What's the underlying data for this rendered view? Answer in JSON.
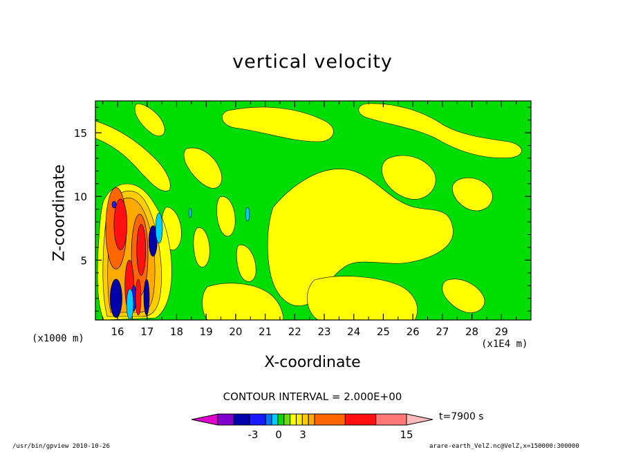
{
  "chart_data": {
    "type": "heatmap",
    "title": "vertical velocity",
    "xlabel": "X-coordinate",
    "ylabel": "Z-coordinate",
    "x_unit_left": "(x1000 m)",
    "x_unit_right": "(x1E4 m)",
    "xlim": [
      15.25,
      30.0
    ],
    "ylim": [
      0.3,
      17.5
    ],
    "x_ticks": [
      "16",
      "17",
      "18",
      "19",
      "20",
      "21",
      "22",
      "23",
      "24",
      "25",
      "26",
      "27",
      "28",
      "29"
    ],
    "y_ticks": [
      "5",
      "10",
      "15"
    ],
    "contour_interval_text": "CONTOUR INTERVAL = 2.000E+00",
    "colorbar_labels": [
      "-3",
      "0",
      "3",
      "15"
    ],
    "time_label": "t=7900 s",
    "colors": {
      "background": "#00dd00",
      "positive_weak": "#ffff00",
      "light_yellow": "#f0e000",
      "gold": "#ffcc00",
      "orange_light": "#ffaa00",
      "orange": "#ff6600",
      "red": "#ff1111",
      "blue_dark": "#1a1aff",
      "navy": "#0000aa",
      "cyan": "#00ccff",
      "magenta": "#dd00cc",
      "purple": "#8000cc",
      "salmon": "#ff7777",
      "pink": "#ffbbbb"
    },
    "colorbar_colors": [
      "#dd00cc",
      "#8000cc",
      "#0000aa",
      "#1a1aff",
      "#0077ff",
      "#00ccff",
      "#00dd00",
      "#66e000",
      "#ffff00",
      "#ffee00",
      "#ffcc00",
      "#ffaa00",
      "#ff6600",
      "#ff1111",
      "#ff7777",
      "#ffbbbb"
    ],
    "features": [
      {
        "kind": "updraft",
        "x": 15.95,
        "y": 7.5,
        "rx": 0.35,
        "ry": 3.2,
        "level": "orange"
      },
      {
        "kind": "updraft",
        "x": 16.1,
        "y": 7.8,
        "rx": 0.22,
        "ry": 2.0,
        "level": "red"
      },
      {
        "kind": "updraft",
        "x": 16.75,
        "y": 5.4,
        "rx": 0.28,
        "ry": 3.2,
        "level": "orange"
      },
      {
        "kind": "updraft",
        "x": 16.8,
        "y": 5.8,
        "rx": 0.15,
        "ry": 2.0,
        "level": "red"
      },
      {
        "kind": "updraft",
        "x": 16.4,
        "y": 3.0,
        "rx": 0.15,
        "ry": 2.0,
        "level": "red"
      },
      {
        "kind": "downdraft",
        "x": 15.95,
        "y": 2.0,
        "rx": 0.2,
        "ry": 1.5,
        "level": "navy"
      },
      {
        "kind": "downdraft",
        "x": 17.2,
        "y": 6.5,
        "rx": 0.14,
        "ry": 1.2,
        "level": "navy"
      },
      {
        "kind": "downdraft",
        "x": 16.55,
        "y": 2.0,
        "rx": 0.08,
        "ry": 1.0,
        "level": "blue_dark"
      }
    ]
  },
  "footer": {
    "left": "/usr/bin/gpview  2010-10-26",
    "right": "arare-earth_VelZ.nc@VelZ,x=150000:300000"
  }
}
